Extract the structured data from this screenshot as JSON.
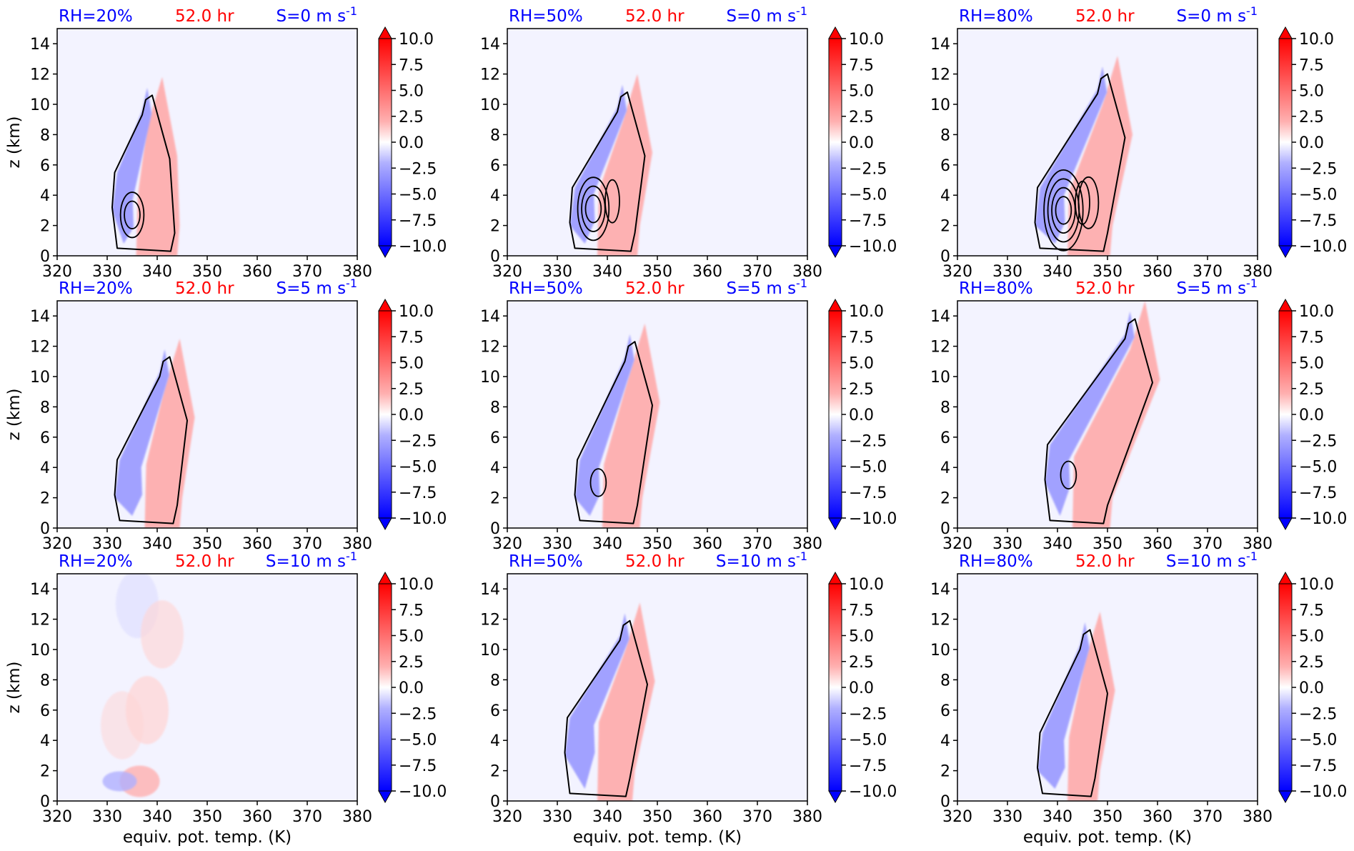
{
  "figure": {
    "time_label": "52.0 hr",
    "rh_labels": [
      "RH=20%",
      "RH=50%",
      "RH=80%"
    ],
    "shear_labels": [
      "S=0",
      "S=5",
      "S=10"
    ],
    "shear_unit": "m s",
    "shear_unit_exponent": "-1",
    "xlabel": "equiv. pot. temp. (K)",
    "ylabel": "z (km)",
    "colors": {
      "rh": "#0000ff",
      "time": "#ff0000",
      "shear": "#0000ff",
      "neg": "#0000ff",
      "pos": "#ff0000",
      "background": "#f3f3ff",
      "contour": "#000000"
    }
  },
  "chart_data": {
    "type": "heatmap",
    "layout": "3x3 grid: rows = shear S (0, 5, 10 m s^-1), columns = RH (20%, 50%, 80%)",
    "xlim": [
      320,
      380
    ],
    "ylim": [
      0,
      15
    ],
    "x_ticks": [
      320,
      330,
      340,
      350,
      360,
      370,
      380
    ],
    "y_ticks": [
      0,
      2,
      4,
      6,
      8,
      10,
      12,
      14
    ],
    "colorbar": {
      "range": [
        -10,
        10
      ],
      "ticks": [
        10.0,
        7.5,
        5.0,
        2.5,
        0.0,
        -2.5,
        -5.0,
        -7.5,
        -10.0
      ],
      "tick_labels": [
        "10.0",
        "7.5",
        "5.0",
        "2.5",
        "0.0",
        "−2.5",
        "−5.0",
        "−7.5",
        "−10.0"
      ],
      "extend": "both",
      "colormap": "bwr"
    },
    "panels": [
      {
        "rh": 20,
        "shear": 0,
        "structure": [
          [
            10.6,
            339.5,
            3.5
          ],
          [
            4.0,
            334.0,
            6.8
          ],
          [
            0.0,
            341.5,
            1.3
          ]
        ],
        "cores": [
          2.7,
          337.3
        ],
        "extra_neg_rings": 2,
        "extra_pos_rings": 0
      },
      {
        "rh": 50,
        "shear": 0,
        "structure": [
          [
            10.8,
            344.5,
            5.0
          ],
          [
            3.0,
            335.5,
            8.0
          ],
          [
            0.0,
            343.5,
            1.6
          ]
        ],
        "cores": [
          3.1,
          339.5
        ],
        "extra_neg_rings": 3,
        "extra_pos_rings": 1
      },
      {
        "rh": 80,
        "shear": 0,
        "structure": [
          [
            12.0,
            350.5,
            5.5
          ],
          [
            3.0,
            338.5,
            9.5
          ],
          [
            0.0,
            348.0,
            1.8
          ]
        ],
        "cores": [
          3.0,
          343.5
        ],
        "extra_neg_rings": 4,
        "extra_pos_rings": 2
      },
      {
        "rh": 20,
        "shear": 5,
        "structure": [
          [
            11.3,
            343.0,
            5.5
          ],
          [
            3.0,
            334.5,
            10.0
          ],
          [
            0.0,
            342.0,
            1.8
          ]
        ],
        "cores": [
          3.0,
          339.0
        ],
        "extra_neg_rings": 0,
        "extra_pos_rings": 0
      },
      {
        "rh": 50,
        "shear": 5,
        "structure": [
          [
            12.3,
            346.0,
            6.0
          ],
          [
            3.0,
            336.5,
            9.0
          ],
          [
            0.0,
            344.0,
            1.8
          ]
        ],
        "cores": [
          3.0,
          340.5
        ],
        "extra_neg_rings": 1,
        "extra_pos_rings": 0
      },
      {
        "rh": 80,
        "shear": 5,
        "structure": [
          [
            13.8,
            356.0,
            9.0
          ],
          [
            4.0,
            340.5,
            10.0
          ],
          [
            0.0,
            348.0,
            2.0
          ]
        ],
        "cores": [
          3.5,
          344.5
        ],
        "extra_neg_rings": 1,
        "extra_pos_rings": 0
      },
      {
        "rh": 20,
        "shear": 10,
        "structure": [
          [
            2.2,
            333.8,
            2.0
          ],
          [
            1.3,
            333.3,
            3.0
          ],
          [
            0.5,
            334.5,
            1.0
          ]
        ],
        "cores": [
          1.3,
          336.5
        ],
        "extra_neg_rings": 0,
        "extra_pos_rings": 0,
        "weak": true
      },
      {
        "rh": 50,
        "shear": 10,
        "structure": [
          [
            11.9,
            345.0,
            6.0
          ],
          [
            4.0,
            334.5,
            9.0
          ],
          [
            0.0,
            342.5,
            1.8
          ]
        ],
        "cores": [
          4.0,
          339.5
        ],
        "extra_neg_rings": 0,
        "extra_pos_rings": 0
      },
      {
        "rh": 80,
        "shear": 10,
        "structure": [
          [
            11.3,
            347.0,
            3.0
          ],
          [
            3.0,
            339.0,
            7.0
          ],
          [
            0.0,
            345.5,
            1.5
          ]
        ],
        "cores": [
          3.0,
          343.5
        ],
        "extra_neg_rings": 0,
        "extra_pos_rings": 0
      }
    ]
  }
}
